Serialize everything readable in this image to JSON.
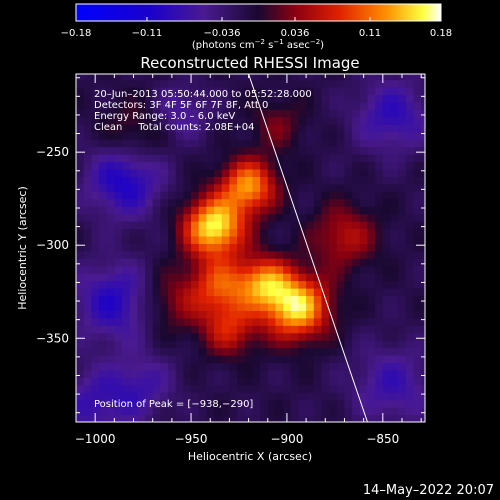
{
  "chart_data": {
    "type": "heatmap",
    "title": "Reconstructed RHESSI Image",
    "xlabel": "Heliocentric X (arcsec)",
    "ylabel": "Heliocentric Y (arcsec)",
    "xlim": [
      -1010,
      -828
    ],
    "ylim": [
      -395,
      -208
    ],
    "x_ticks": [
      -1000,
      -950,
      -900,
      -850
    ],
    "y_ticks": [
      -250,
      -300,
      -350
    ],
    "x_tick_labels": [
      "−1000",
      "−950",
      "−900",
      "−850"
    ],
    "y_tick_labels": [
      "−250",
      "−300",
      "−350"
    ],
    "colorbar": {
      "range": [
        -0.18,
        0.18
      ],
      "ticks": [
        -0.18,
        -0.11,
        -0.036,
        0.036,
        0.11,
        0.18
      ],
      "tick_labels": [
        "−0.18",
        "−0.11",
        "−0.036",
        "0.036",
        "0.11",
        "0.18"
      ],
      "unit_parts": [
        "(photons cm",
        "−2",
        " s",
        "−1",
        " asec",
        "−2",
        ")"
      ]
    },
    "annotations": [
      "20–Jun–2013 05:50:44.000 to 05:52:28.000",
      "Detectors: 3F 4F 5F 6F 7F 8F, Att 0",
      "Energy Range: 3.0 – 6.0 keV",
      "Clean     Total counts: 2.08E+04"
    ],
    "peak_label": "Position of Peak = [−938,−290]",
    "peak": [
      -938,
      -290
    ],
    "limb_line": [
      [
        -920,
        -208
      ],
      [
        -858,
        -395
      ]
    ],
    "sources": [
      {
        "x": -938,
        "y": -290,
        "amp": 0.18,
        "sigma": 11
      },
      {
        "x": -920,
        "y": -268,
        "amp": 0.14,
        "sigma": 10
      },
      {
        "x": -895,
        "y": -333,
        "amp": 0.17,
        "sigma": 12
      },
      {
        "x": -912,
        "y": -320,
        "amp": 0.12,
        "sigma": 10
      },
      {
        "x": -935,
        "y": -322,
        "amp": 0.1,
        "sigma": 11
      },
      {
        "x": -930,
        "y": -345,
        "amp": 0.08,
        "sigma": 10
      },
      {
        "x": -870,
        "y": -295,
        "amp": 0.07,
        "sigma": 12
      },
      {
        "x": -960,
        "y": -330,
        "amp": 0.05,
        "sigma": 12
      },
      {
        "x": -980,
        "y": -240,
        "amp": 0.04,
        "sigma": 12
      },
      {
        "x": -905,
        "y": -235,
        "amp": 0.04,
        "sigma": 10
      },
      {
        "x": -985,
        "y": -265,
        "amp": -0.09,
        "sigma": 14
      },
      {
        "x": -990,
        "y": -330,
        "amp": -0.08,
        "sigma": 15
      },
      {
        "x": -845,
        "y": -230,
        "amp": -0.07,
        "sigma": 14
      },
      {
        "x": -1000,
        "y": -385,
        "amp": -0.06,
        "sigma": 14
      },
      {
        "x": -845,
        "y": -375,
        "amp": -0.06,
        "sigma": 15
      },
      {
        "x": -955,
        "y": -228,
        "amp": -0.05,
        "sigma": 10
      },
      {
        "x": -975,
        "y": -375,
        "amp": -0.05,
        "sigma": 12
      }
    ]
  },
  "footer": {
    "timestamp": "14–May–2022 20:07"
  },
  "colors": {
    "background": "#000000",
    "foreground": "#ffffff"
  }
}
